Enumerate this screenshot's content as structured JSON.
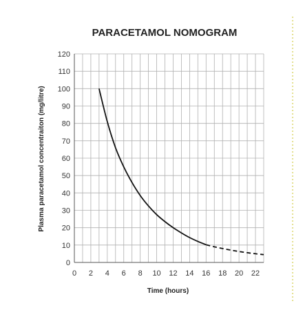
{
  "chart_data": {
    "type": "line",
    "title": "PARACETAMOL NOMOGRAM",
    "xlabel": "Time (hours)",
    "ylabel": "Plasma paracetamol concentraiton (mg/litre)",
    "xlim": [
      0,
      23
    ],
    "ylim": [
      0,
      120
    ],
    "x_ticks": [
      "0",
      "2",
      "4",
      "6",
      "8",
      "10",
      "12",
      "14",
      "16",
      "18",
      "20",
      "22"
    ],
    "y_ticks": [
      "0",
      "10",
      "20",
      "30",
      "40",
      "50",
      "60",
      "70",
      "80",
      "90",
      "100",
      "110",
      "120"
    ],
    "grid": true,
    "legend": "none",
    "series": [
      {
        "line_style": "solid",
        "color": "#111111",
        "x": [
          3,
          4,
          5,
          6,
          7,
          8,
          9,
          10,
          11,
          12,
          13,
          14,
          15,
          16
        ],
        "y": [
          100,
          81,
          66,
          55,
          46,
          38.5,
          32.5,
          27.5,
          23.5,
          20,
          17,
          14.3,
          12.1,
          10.2
        ]
      },
      {
        "line_style": "dashed",
        "color": "#111111",
        "x": [
          16,
          17,
          18,
          19,
          20,
          21,
          22,
          23
        ],
        "y": [
          10.2,
          9,
          8,
          7.1,
          6.3,
          5.6,
          5,
          4.5
        ]
      }
    ],
    "colors": {
      "grid": "#b0b0b0",
      "axis": "#555555",
      "border_dotted": "#c8c020"
    }
  }
}
